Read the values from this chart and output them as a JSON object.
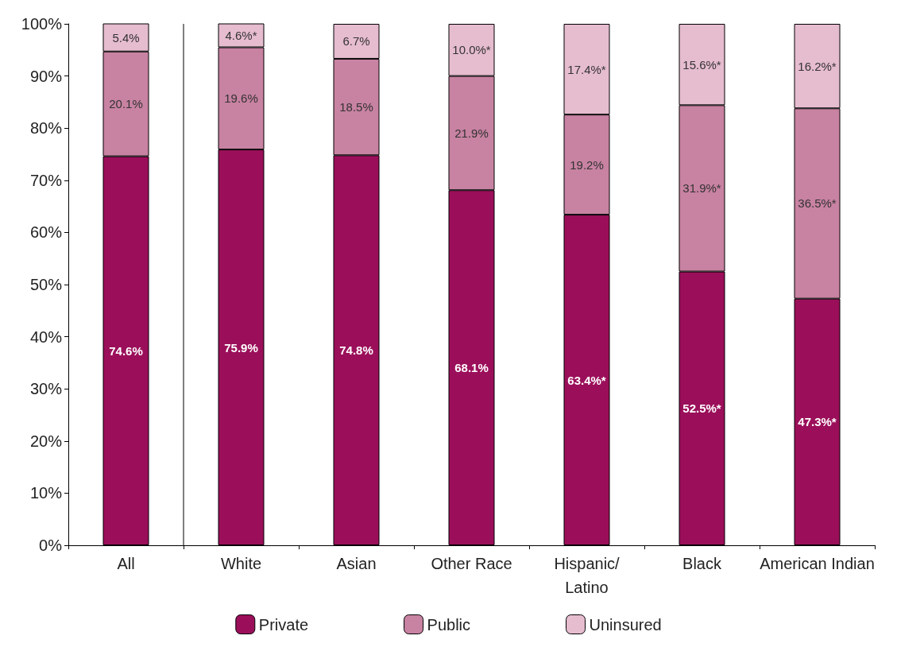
{
  "chart_data": {
    "type": "bar",
    "stacked": true,
    "categories": [
      "All",
      "White",
      "Asian",
      "Other Race",
      "Hispanic/\nLatino",
      "Black",
      "American Indian"
    ],
    "series": [
      {
        "name": "Private",
        "color": "#9b0f5a",
        "values": [
          74.6,
          75.9,
          74.8,
          68.1,
          63.4,
          52.5,
          47.3
        ],
        "value_labels": [
          "74.6%",
          "75.9%",
          "74.8%",
          "68.1%",
          "63.4%*",
          "52.5%*",
          "47.3%*"
        ]
      },
      {
        "name": "Public",
        "color": "#c882a2",
        "values": [
          20.1,
          19.6,
          18.5,
          21.9,
          19.2,
          31.9,
          36.5
        ],
        "value_labels": [
          "20.1%",
          "19.6%",
          "18.5%",
          "21.9%",
          "19.2%",
          "31.9%*",
          "36.5%*"
        ]
      },
      {
        "name": "Uninsured",
        "color": "#e6bccf",
        "values": [
          5.4,
          4.6,
          6.7,
          10.0,
          17.4,
          15.6,
          16.2
        ],
        "value_labels": [
          "5.4%",
          "4.6%*",
          "6.7%",
          "10.0%*",
          "17.4%*",
          "15.6%*",
          "16.2%*"
        ]
      }
    ],
    "ylim": [
      0,
      100
    ],
    "yticks": [
      {
        "value": 0,
        "label": "0%"
      },
      {
        "value": 10,
        "label": "10%"
      },
      {
        "value": 20,
        "label": "20%"
      },
      {
        "value": 30,
        "label": "30%"
      },
      {
        "value": 40,
        "label": "40%"
      },
      {
        "value": 50,
        "label": "50%"
      },
      {
        "value": 60,
        "label": "60%"
      },
      {
        "value": 70,
        "label": "70%"
      },
      {
        "value": 80,
        "label": "80%"
      },
      {
        "value": 90,
        "label": "90%"
      },
      {
        "value": 100,
        "label": "100%"
      }
    ],
    "grid": false,
    "legend": "bottom"
  }
}
